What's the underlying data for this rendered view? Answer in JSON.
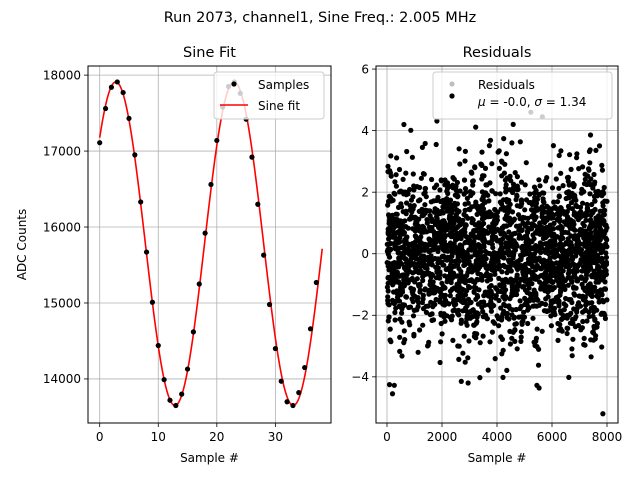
{
  "suptitle": "Run 2073, channel1, Sine Freq.: 2.005 MHz",
  "colors": {
    "samples": "#000000",
    "fit": "#ff0000",
    "residual_legend_marker": "#bfbfbf",
    "grid": "#b0b0b0"
  },
  "chart_data": [
    {
      "type": "scatter",
      "title": "Sine Fit",
      "xlabel": "Sample #",
      "ylabel": "ADC Counts",
      "xlim": [
        -2,
        39.5
      ],
      "ylim": [
        13420,
        18120
      ],
      "xticks": [
        0,
        10,
        20,
        30
      ],
      "yticks": [
        14000,
        15000,
        16000,
        17000,
        18000
      ],
      "grid": true,
      "legend_position": "top-right",
      "series": [
        {
          "name": "Samples",
          "kind": "points",
          "x": [
            0,
            1,
            2,
            3,
            4,
            5,
            6,
            7,
            8,
            9,
            10,
            11,
            12,
            13,
            14,
            15,
            16,
            17,
            18,
            19,
            20,
            21,
            22,
            23,
            24,
            25,
            26,
            27,
            28,
            29,
            30,
            31,
            32,
            33,
            34,
            35,
            36,
            37
          ],
          "y": [
            17110,
            17560,
            17840,
            17910,
            17770,
            17430,
            16950,
            16330,
            15670,
            15010,
            14440,
            13990,
            13720,
            13650,
            13800,
            14130,
            14620,
            15250,
            15920,
            16560,
            17140,
            17580,
            17850,
            17910,
            17760,
            17420,
            16920,
            16300,
            15630,
            14980,
            14400,
            13970,
            13700,
            13650,
            13820,
            14150,
            14660,
            15270
          ]
        },
        {
          "name": "Sine fit",
          "kind": "line",
          "model": {
            "offset": 15780,
            "amplitude": 2130,
            "period": 20.2,
            "phase_zero_sample": -2.3,
            "x_range": [
              0,
              38
            ]
          }
        }
      ]
    },
    {
      "type": "scatter",
      "title": "Residuals",
      "xlabel": "Sample #",
      "ylabel": "",
      "xlim": [
        -400,
        8400
      ],
      "ylim": [
        -5.5,
        6.1
      ],
      "xticks": [
        0,
        2000,
        4000,
        6000,
        8000
      ],
      "yticks": [
        -4,
        -2,
        0,
        2,
        4,
        6
      ],
      "grid": true,
      "legend_position": "top-right",
      "series": [
        {
          "name": "Residuals",
          "kind": "points",
          "count": 8000,
          "x_range": [
            0,
            8000
          ],
          "mean": -0.0,
          "sigma": 1.34
        },
        {
          "name": "μ = -0.0, σ = 1.34",
          "kind": "legend-only"
        }
      ],
      "notable_points": [
        {
          "x": 7850,
          "y": -5.2
        },
        {
          "x": 200,
          "y": -4.55
        },
        {
          "x": 5650,
          "y": 4.45
        },
        {
          "x": 2950,
          "y": -4.2
        },
        {
          "x": 5230,
          "y": 4.6
        }
      ]
    }
  ]
}
